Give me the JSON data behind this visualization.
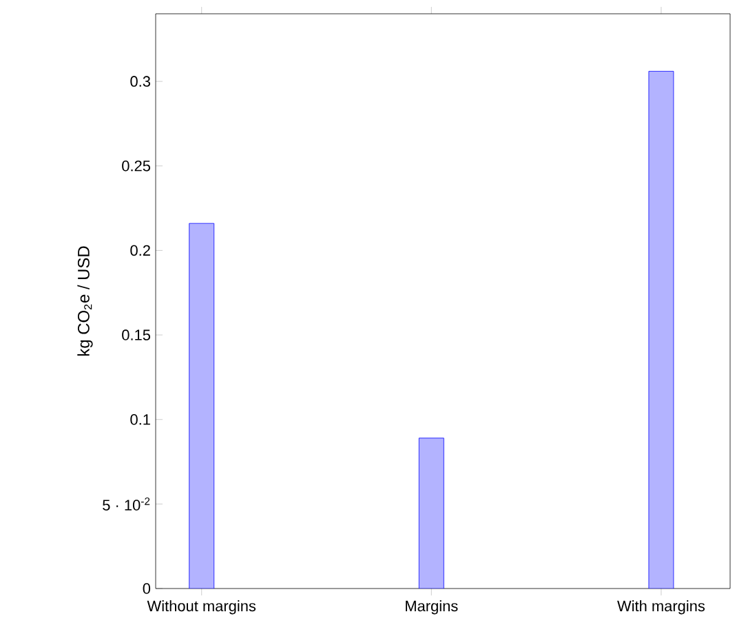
{
  "chart_data": {
    "type": "bar",
    "ylabel": "kg CO$_{2}$e / USD",
    "categories": [
      "Without  margins",
      "Margins",
      "With  margins"
    ],
    "values": [
      0.216,
      0.089,
      0.306
    ],
    "color": "#b3b3ff",
    "ylim": [
      0,
      0.34
    ],
    "yticks": [
      0,
      {
        "value": 0.05,
        "label": "5 · 10$^{-2}$"
      },
      0.1,
      0.15,
      0.2,
      0.25,
      0.3
    ]
  }
}
